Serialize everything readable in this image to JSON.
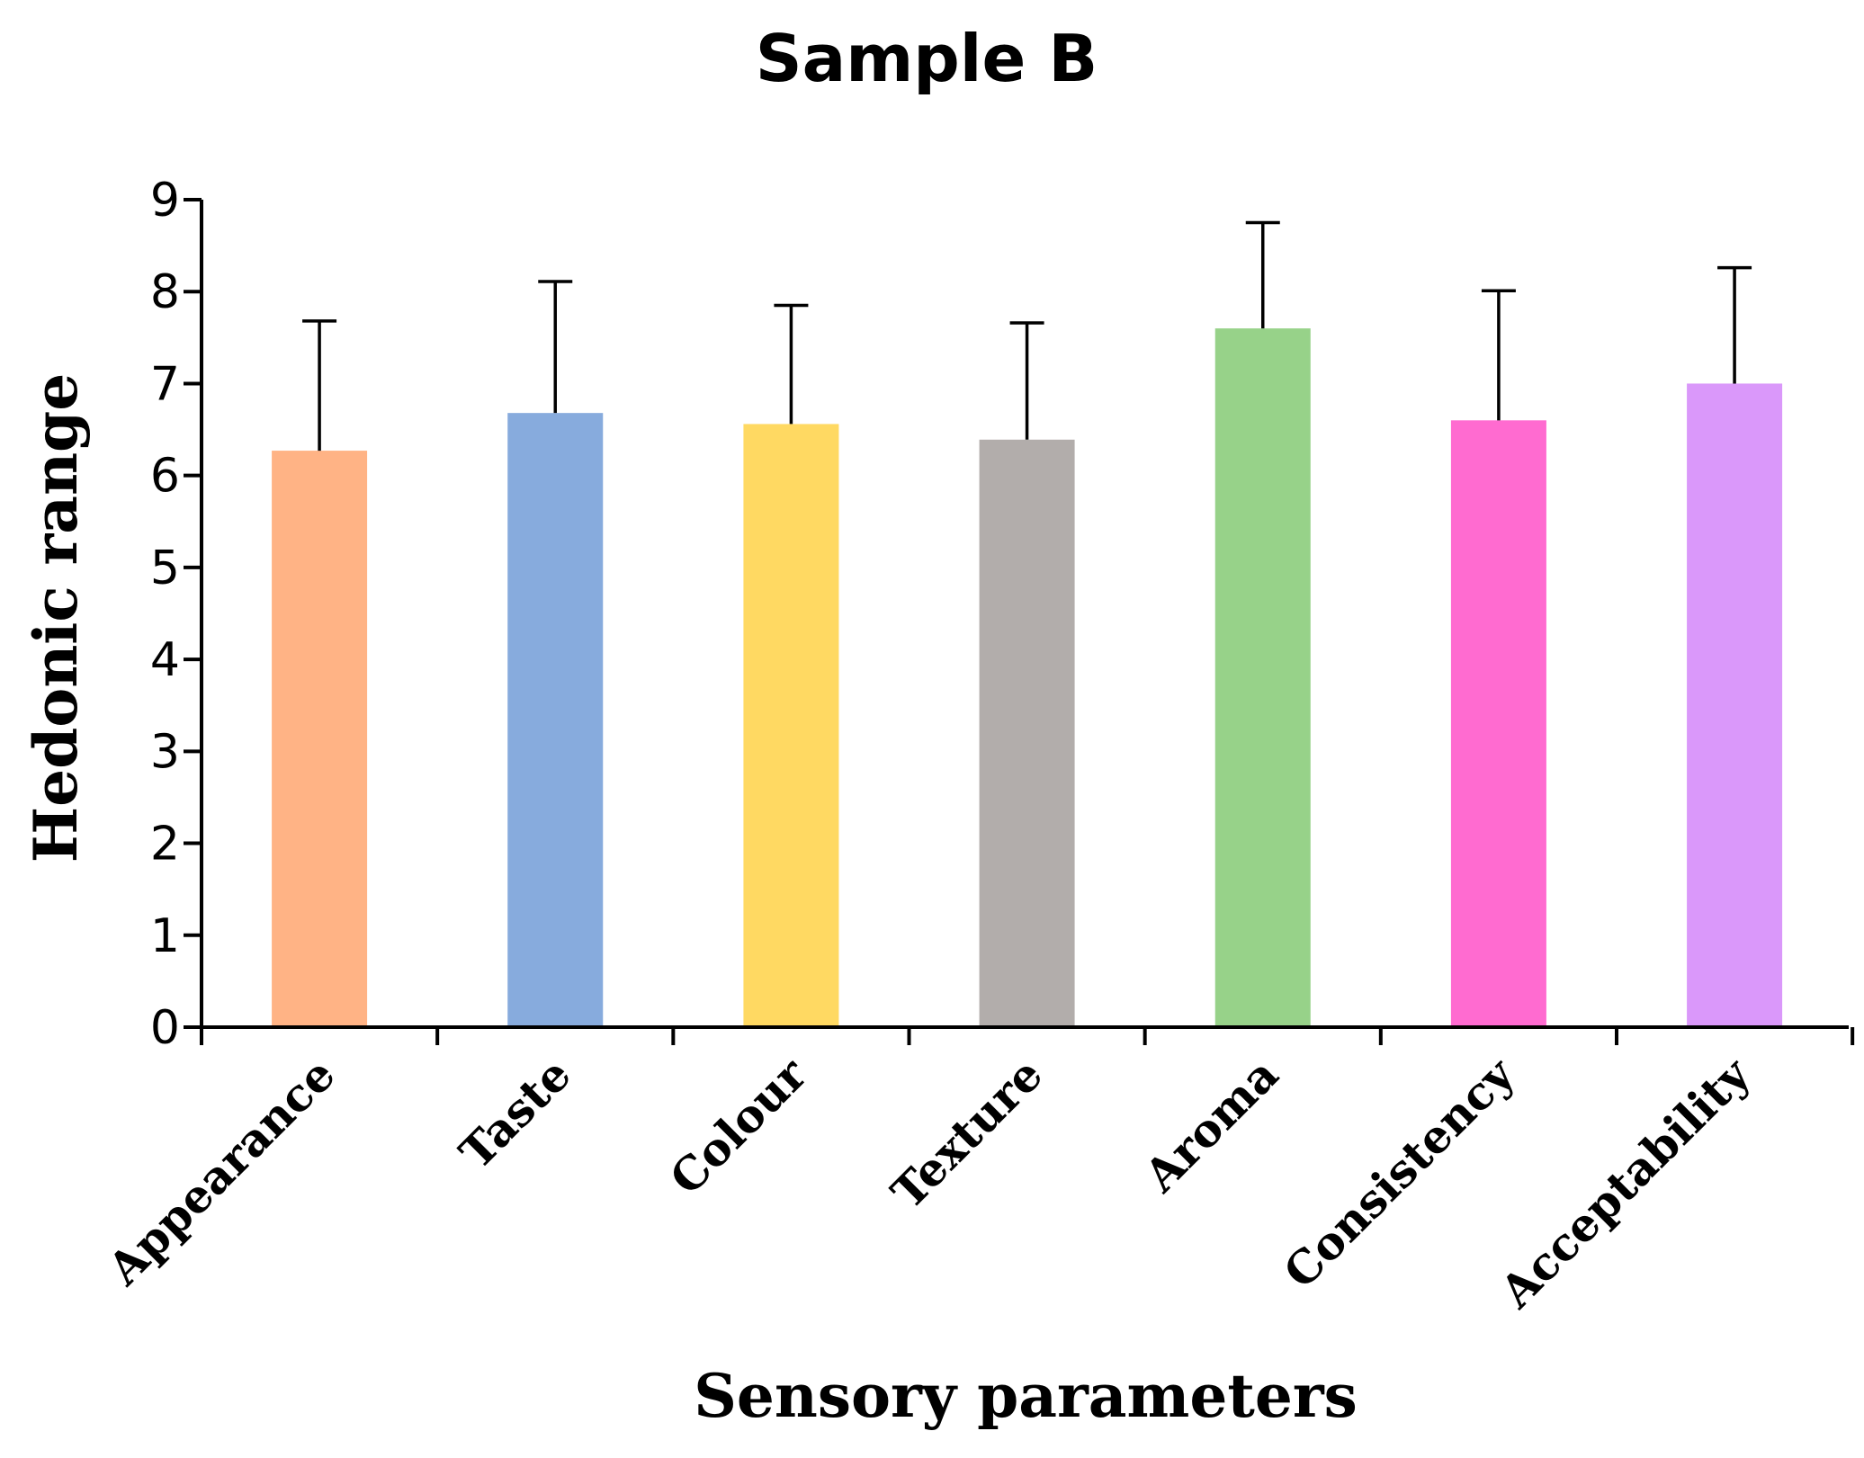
{
  "chart_data": {
    "type": "bar",
    "title": "Sample B",
    "xlabel": "Sensory parameters",
    "ylabel": "Hedonic range",
    "ylim": [
      0,
      9
    ],
    "yticks": [
      "0",
      "1",
      "2",
      "3",
      "4",
      "5",
      "6",
      "7",
      "8",
      "9"
    ],
    "categories": [
      "Appearance",
      "Taste",
      "Colour",
      "Texture",
      "Aroma",
      "Consistency",
      "Acceptability"
    ],
    "values": [
      6.27,
      6.68,
      6.56,
      6.39,
      7.6,
      6.6,
      7.0
    ],
    "errors": [
      1.41,
      1.43,
      1.29,
      1.27,
      1.15,
      1.41,
      1.26
    ],
    "colors": [
      "#FFB385",
      "#87ABDD",
      "#FFD962",
      "#B2ADAB",
      "#97D289",
      "#FF6BD0",
      "#DA98FA"
    ],
    "grid": false,
    "legend": "none"
  }
}
